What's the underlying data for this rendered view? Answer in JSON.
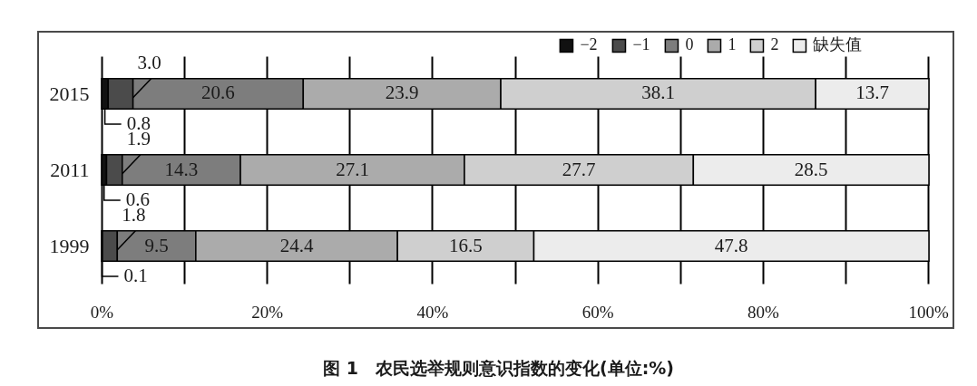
{
  "chart_data": {
    "type": "bar",
    "orientation": "horizontal",
    "stacked": true,
    "title": "图 1　农民选举规则意识指数的变化(单位:%)",
    "categories": [
      "2015",
      "2011",
      "1999"
    ],
    "series": [
      {
        "name": "−2",
        "color": "#111111",
        "values": [
          0.8,
          0.6,
          0.1
        ],
        "value_labels": [
          "0.8",
          "0.6",
          "0.1"
        ]
      },
      {
        "name": "−1",
        "color": "#4b4b4b",
        "values": [
          3.0,
          1.9,
          1.8
        ],
        "value_labels": [
          "3.0",
          "1.9",
          "1.8"
        ]
      },
      {
        "name": "0",
        "color": "#7d7d7d",
        "values": [
          20.6,
          14.3,
          9.5
        ],
        "value_labels": [
          "20.6",
          "14.3",
          "9.5"
        ]
      },
      {
        "name": "1",
        "color": "#ababab",
        "values": [
          23.9,
          27.1,
          24.4
        ],
        "value_labels": [
          "23.9",
          "27.1",
          "24.4"
        ]
      },
      {
        "name": "2",
        "color": "#cfcfcf",
        "values": [
          38.1,
          27.7,
          16.5
        ],
        "value_labels": [
          "38.1",
          "27.7",
          "16.5"
        ]
      },
      {
        "name": "缺失值",
        "color": "#ececec",
        "values": [
          13.7,
          28.5,
          47.8
        ],
        "value_labels": [
          "13.7",
          "28.5",
          "47.8"
        ]
      }
    ],
    "xlim": [
      0,
      100.1
    ],
    "xticks": [
      {
        "value": 0,
        "label": "0%"
      },
      {
        "value": 10,
        "label": null
      },
      {
        "value": 20,
        "label": "20%"
      },
      {
        "value": 30,
        "label": null
      },
      {
        "value": 40,
        "label": "40%"
      },
      {
        "value": 50,
        "label": null
      },
      {
        "value": 60,
        "label": "60%"
      },
      {
        "value": 70,
        "label": null
      },
      {
        "value": 80,
        "label": "80%"
      },
      {
        "value": 90,
        "label": null
      },
      {
        "value": 100,
        "label": "100%"
      }
    ],
    "grid": "x",
    "legend": "top right"
  }
}
